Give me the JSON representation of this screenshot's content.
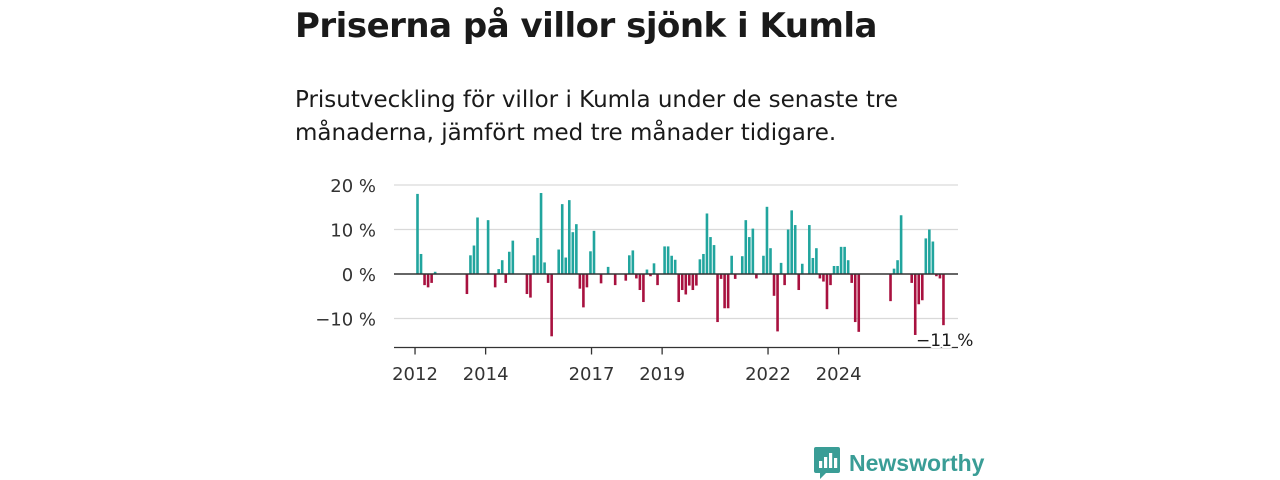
{
  "header": {
    "title": "Priserna på villor sjönk i Kumla",
    "subtitle_lines": [
      "Prisutveckling för villor i Kumla under de senaste tre",
      "månaderna, jämfört med tre månader tidigare."
    ]
  },
  "brand": {
    "name": "Newsworthy",
    "color": "#3a9d96"
  },
  "chart_data": {
    "type": "bar",
    "x_start": "2012-08",
    "x_step": "month",
    "ylabel": "",
    "ylim": [
      -16.5,
      20
    ],
    "y_ticks": [
      20,
      10,
      0,
      -10
    ],
    "y_tick_labels": [
      "20 %",
      "10 %",
      "0 %",
      "−10 %"
    ],
    "x_ticks": [
      "2012",
      "2014",
      "2017",
      "2019",
      "2022",
      "2024"
    ],
    "x_tick_positions": [
      -0.7,
      19.3,
      49.3,
      69.3,
      99.3,
      119.3
    ],
    "annotation": {
      "text": "−11 %",
      "value": -11.5
    },
    "positive_color": "#21a59e",
    "negative_color": "#a8113f",
    "grid": true,
    "values": [
      18,
      4.5,
      -2.5,
      -3,
      -2,
      0.5,
      null,
      null,
      null,
      null,
      null,
      null,
      null,
      null,
      -4.5,
      4.2,
      6.4,
      12.7,
      null,
      null,
      12.1,
      null,
      -3,
      1.1,
      3.1,
      -2,
      5,
      7.5,
      null,
      null,
      null,
      -4.5,
      -5.3,
      4.2,
      8.1,
      18.2,
      2.6,
      -2,
      -14,
      null,
      5.5,
      15.7,
      3.7,
      16.6,
      9.4,
      11.2,
      -3.3,
      -7.5,
      -3,
      5.1,
      9.7,
      null,
      -2.1,
      null,
      1.6,
      null,
      -2.5,
      null,
      null,
      -1.5,
      4.2,
      5.3,
      -1,
      -3.6,
      -6.3,
      1,
      -0.5,
      2.4,
      -2.5,
      null,
      6.2,
      6.2,
      4.1,
      3.2,
      -6.3,
      -3.6,
      -4.6,
      -2.6,
      -3.6,
      -2.6,
      3.3,
      4.5,
      13.6,
      8.3,
      6.5,
      -10.8,
      -1.1,
      -7.7,
      -7.7,
      4.1,
      -1.1,
      null,
      4,
      12.1,
      8.3,
      10.2,
      -1,
      null,
      4.1,
      15.1,
      5.8,
      -4.9,
      -12.9,
      2.5,
      -2.5,
      10,
      14.3,
      11,
      -3.6,
      2.3,
      null,
      11,
      3.6,
      5.8,
      -1,
      -1.7,
      -7.9,
      -2.5,
      1.8,
      1.8,
      6.1,
      6.1,
      3.1,
      -2,
      -10.8,
      -13,
      null,
      null,
      null,
      null,
      null,
      null,
      null,
      null,
      -6.1,
      1.2,
      3.1,
      13.2,
      null,
      null,
      -2,
      -13.7,
      -6.8,
      -5.9,
      8,
      10,
      7.3,
      -0.5,
      -1,
      -11.5
    ]
  }
}
